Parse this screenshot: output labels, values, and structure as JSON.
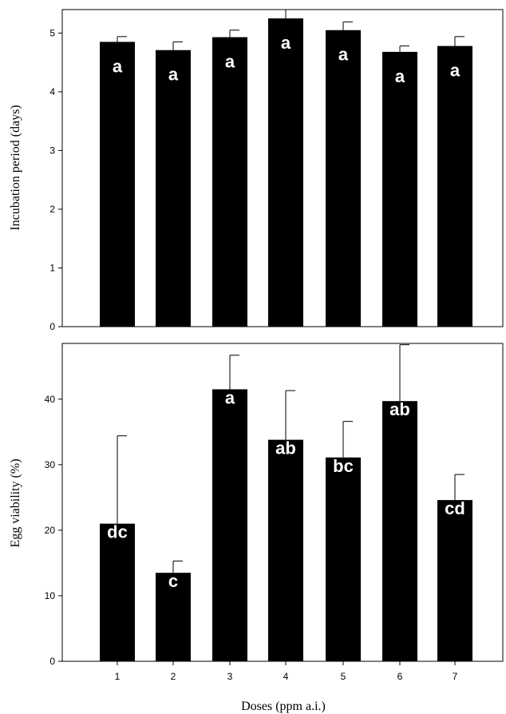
{
  "chart_data": [
    {
      "type": "bar",
      "categories": [
        "1",
        "2",
        "3",
        "4",
        "5",
        "6",
        "7"
      ],
      "values": [
        4.85,
        4.71,
        4.93,
        5.25,
        5.05,
        4.68,
        4.78
      ],
      "error": [
        0.09,
        0.14,
        0.12,
        0.16,
        0.14,
        0.1,
        0.16
      ],
      "labels": [
        "a",
        "a",
        "a",
        "a",
        "a",
        "a",
        "a"
      ],
      "ylabel": "Incubation period (days)",
      "xlabel": "",
      "ylim": [
        0,
        5.4
      ],
      "yticks": [
        0,
        1,
        2,
        3,
        4,
        5
      ],
      "color": "#000000"
    },
    {
      "type": "bar",
      "categories": [
        "1",
        "2",
        "3",
        "4",
        "5",
        "6",
        "7"
      ],
      "values": [
        21.0,
        13.5,
        41.5,
        33.8,
        31.1,
        39.7,
        24.6
      ],
      "error": [
        13.4,
        1.8,
        5.2,
        7.5,
        5.5,
        8.6,
        3.9
      ],
      "labels": [
        "dc",
        "c",
        "a",
        "ab",
        "bc",
        "ab",
        "cd"
      ],
      "ylabel": "Egg viability (%)",
      "xlabel": "Doses (ppm a.i.)",
      "ylim": [
        0,
        48.5
      ],
      "yticks": [
        0,
        10,
        20,
        30,
        40
      ],
      "color": "#000000"
    }
  ]
}
